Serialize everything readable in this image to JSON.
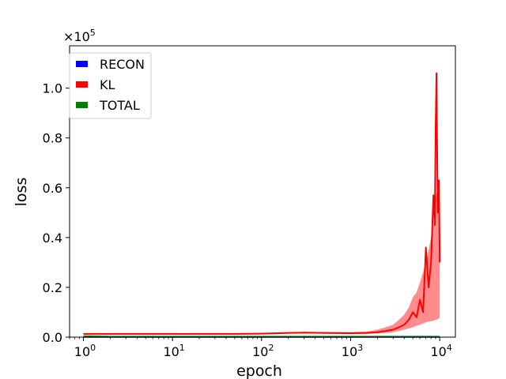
{
  "chart_data": {
    "type": "line",
    "title": "",
    "xlabel": "epoch",
    "ylabel": "loss",
    "x_scale": "log",
    "xlim": [
      0.7,
      15000
    ],
    "ylim": [
      0,
      1.17
    ],
    "y_offset_label": "×10",
    "y_offset_exponent": "5",
    "x_tick_labels": [
      {
        "value": 1,
        "base": "10",
        "exp": "0"
      },
      {
        "value": 10,
        "base": "10",
        "exp": "1"
      },
      {
        "value": 100,
        "base": "10",
        "exp": "2"
      },
      {
        "value": 1000,
        "base": "10",
        "exp": "3"
      },
      {
        "value": 10000,
        "base": "10",
        "exp": "4"
      }
    ],
    "y_ticks": [
      {
        "value": 0.0,
        "label": "0.0"
      },
      {
        "value": 0.2,
        "label": "0.2"
      },
      {
        "value": 0.4,
        "label": "0.4"
      },
      {
        "value": 0.6,
        "label": "0.6"
      },
      {
        "value": 0.8,
        "label": "0.8"
      },
      {
        "value": 1.0,
        "label": "1.0"
      }
    ],
    "grid": false,
    "legend_position": "top-left",
    "series": [
      {
        "name": "RECON",
        "color": "#0000ff",
        "x": [
          1,
          10,
          100,
          1000,
          10000
        ],
        "y": [
          0.001,
          0.001,
          0.001,
          0.001,
          0.001
        ]
      },
      {
        "name": "KL",
        "color": "#ff0000",
        "band_color": "#ff8080",
        "x": [
          1,
          5,
          10,
          50,
          100,
          200,
          300,
          500,
          1000,
          1500,
          2000,
          2500,
          3000,
          3500,
          4000,
          4500,
          5000,
          5500,
          6000,
          6500,
          7000,
          7500,
          8000,
          8500,
          8800,
          9000,
          9200,
          9500,
          9800,
          10000
        ],
        "y": [
          0.013,
          0.013,
          0.013,
          0.013,
          0.014,
          0.017,
          0.018,
          0.017,
          0.016,
          0.017,
          0.02,
          0.025,
          0.03,
          0.04,
          0.05,
          0.07,
          0.1,
          0.08,
          0.15,
          0.1,
          0.36,
          0.2,
          0.3,
          0.57,
          0.45,
          0.84,
          1.06,
          0.5,
          0.63,
          0.3
        ],
        "band_low": [
          0.01,
          0.01,
          0.01,
          0.01,
          0.011,
          0.014,
          0.015,
          0.014,
          0.013,
          0.013,
          0.015,
          0.017,
          0.02,
          0.025,
          0.03,
          0.035,
          0.04,
          0.045,
          0.05,
          0.055,
          0.06,
          0.062,
          0.064,
          0.066,
          0.068,
          0.07,
          0.07,
          0.072,
          0.075,
          0.08
        ],
        "band_high": [
          0.016,
          0.016,
          0.016,
          0.016,
          0.017,
          0.02,
          0.021,
          0.02,
          0.02,
          0.022,
          0.03,
          0.04,
          0.05,
          0.07,
          0.09,
          0.12,
          0.16,
          0.18,
          0.22,
          0.26,
          0.3,
          0.35,
          0.4,
          0.45,
          0.5,
          0.55,
          0.58,
          0.6,
          0.62,
          0.5
        ]
      },
      {
        "name": "TOTAL",
        "color": "#008000",
        "x": [
          1,
          2,
          10,
          100,
          1000,
          10000
        ],
        "y": [
          0.004,
          0.002,
          0.002,
          0.002,
          0.002,
          0.002
        ]
      }
    ]
  }
}
